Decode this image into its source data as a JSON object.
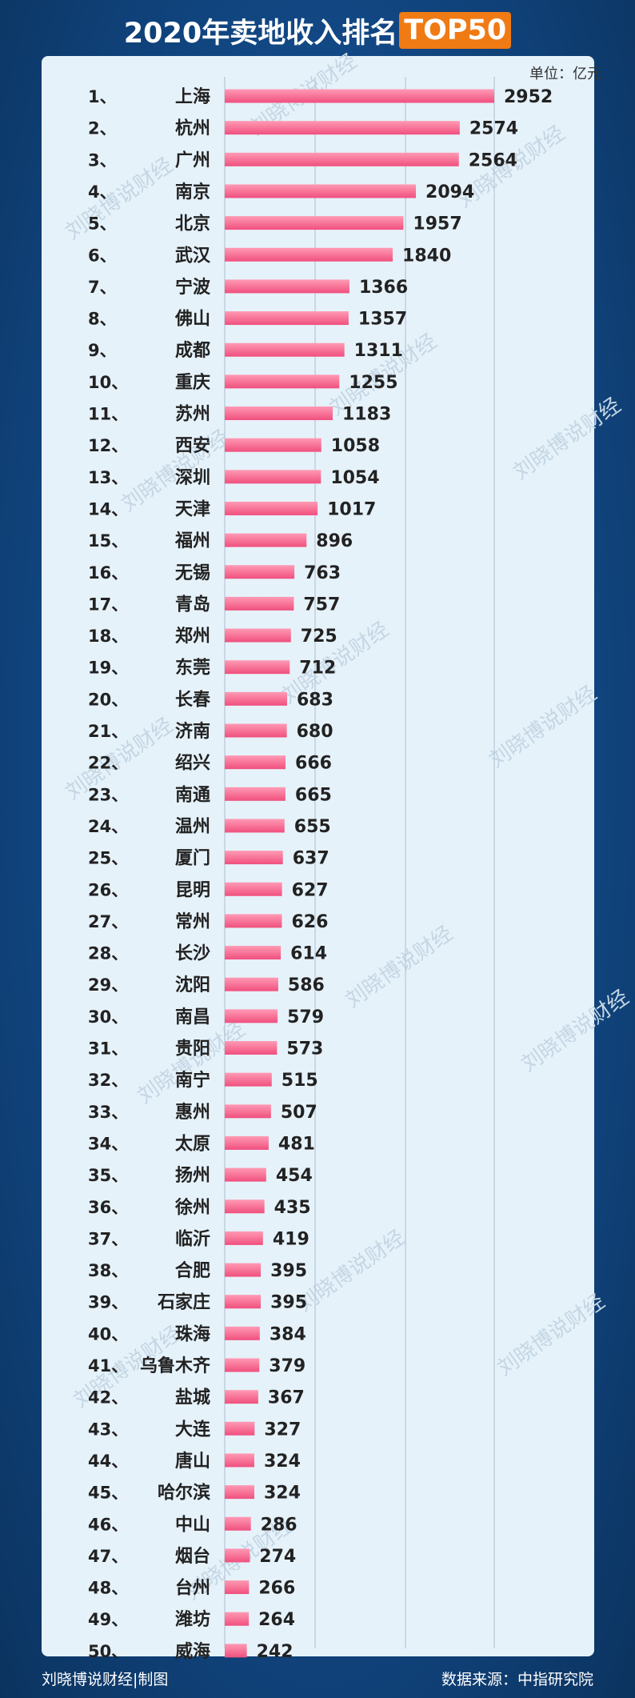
{
  "title": {
    "main": "2020年卖地收入排名",
    "highlight": "TOP50"
  },
  "unit_label": "单位：亿元",
  "watermark": "刘晓博说财经",
  "footer": {
    "left": "刘晓博说财经|制图",
    "right": "数据来源：中指研究院"
  },
  "colors": {
    "bar_top": "#ff9ab4",
    "bar_bottom": "#f0507e",
    "panel": "#e6f2fa",
    "highlight": "#f07a14"
  },
  "chart_data": {
    "type": "bar",
    "orientation": "horizontal",
    "title": "2020年卖地收入排名TOP50",
    "unit": "亿元",
    "ranks": [
      "1、",
      "2、",
      "3、",
      "4、",
      "5、",
      "6、",
      "7、",
      "8、",
      "9、",
      "10、",
      "11、",
      "12、",
      "13、",
      "14、",
      "15、",
      "16、",
      "17、",
      "18、",
      "19、",
      "20、",
      "21、",
      "22、",
      "23、",
      "24、",
      "25、",
      "26、",
      "27、",
      "28、",
      "29、",
      "30、",
      "31、",
      "32、",
      "33、",
      "34、",
      "35、",
      "36、",
      "37、",
      "38、",
      "39、",
      "40、",
      "41、",
      "42、",
      "43、",
      "44、",
      "45、",
      "46、",
      "47、",
      "48、",
      "49、",
      "50、"
    ],
    "categories": [
      "上海",
      "杭州",
      "广州",
      "南京",
      "北京",
      "武汉",
      "宁波",
      "佛山",
      "成都",
      "重庆",
      "苏州",
      "西安",
      "深圳",
      "天津",
      "福州",
      "无锡",
      "青岛",
      "郑州",
      "东莞",
      "长春",
      "济南",
      "绍兴",
      "南通",
      "温州",
      "厦门",
      "昆明",
      "常州",
      "长沙",
      "沈阳",
      "南昌",
      "贵阳",
      "南宁",
      "惠州",
      "太原",
      "扬州",
      "徐州",
      "临沂",
      "合肥",
      "石家庄",
      "珠海",
      "乌鲁木齐",
      "盐城",
      "大连",
      "唐山",
      "哈尔滨",
      "中山",
      "烟台",
      "台州",
      "潍坊",
      "威海"
    ],
    "values": [
      2952,
      2574,
      2564,
      2094,
      1957,
      1840,
      1366,
      1357,
      1311,
      1255,
      1183,
      1058,
      1054,
      1017,
      896,
      763,
      757,
      725,
      712,
      683,
      680,
      666,
      665,
      655,
      637,
      627,
      626,
      614,
      586,
      579,
      573,
      515,
      507,
      481,
      454,
      435,
      419,
      395,
      395,
      384,
      379,
      367,
      327,
      324,
      324,
      286,
      274,
      266,
      264,
      242
    ],
    "xlim": [
      0,
      2952
    ],
    "grid": true,
    "legend": "none"
  }
}
